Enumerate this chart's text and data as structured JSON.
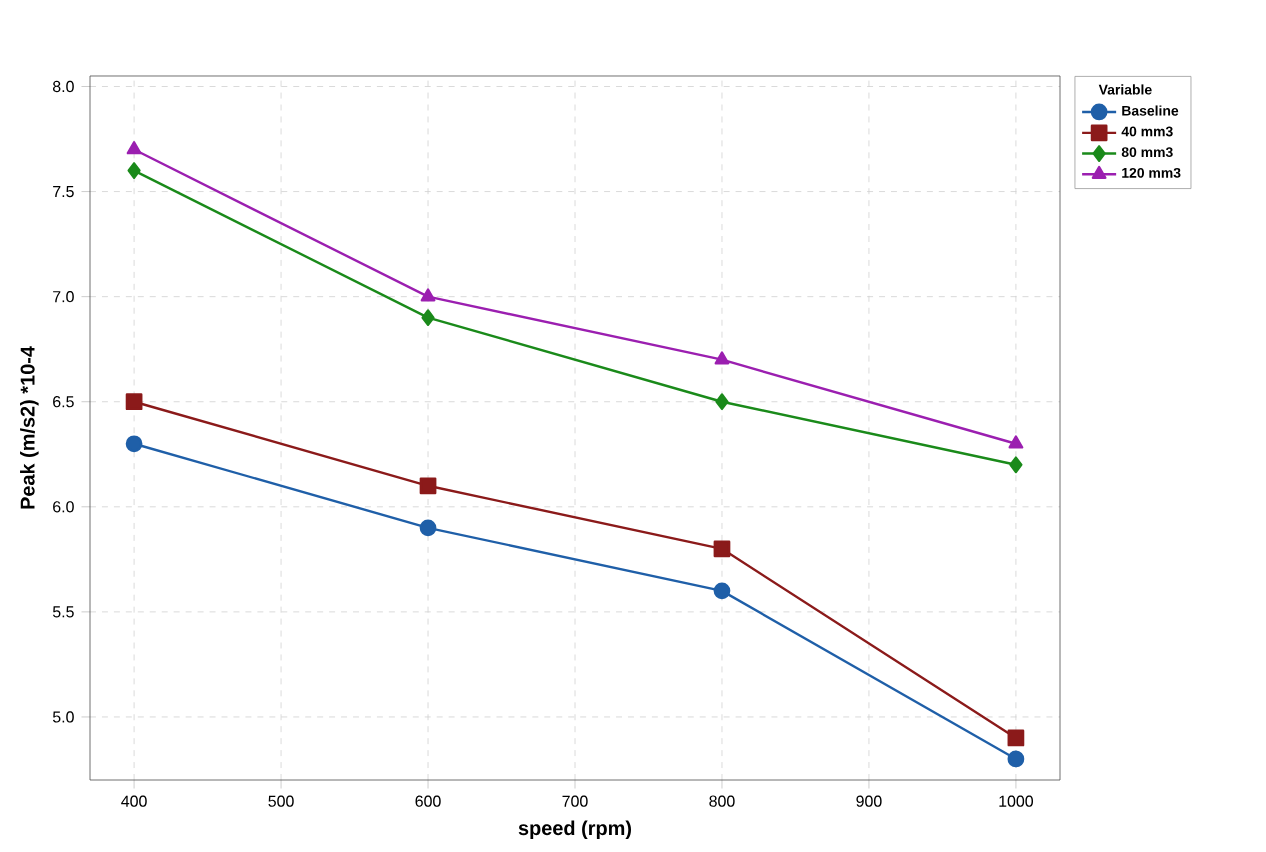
{
  "chart_data": {
    "type": "line",
    "xlabel": "speed (rpm)",
    "ylabel": "Peak (m/s2) *10-4",
    "legend_title": "Variable",
    "legend": "top right",
    "grid": true,
    "line_style": "solid",
    "x": [
      400,
      600,
      800,
      1000
    ],
    "xlim": [
      370,
      1030
    ],
    "xticks": [
      400,
      500,
      600,
      700,
      800,
      900,
      1000
    ],
    "ylim": [
      4.7,
      8.05
    ],
    "yticks": [
      {
        "value": 5,
        "label": "5.0"
      },
      5.5,
      {
        "value": 6,
        "label": "6.0"
      },
      6.5,
      {
        "value": 7,
        "label": "7.0"
      },
      7.5,
      {
        "value": 8,
        "label": "8.0"
      }
    ],
    "series": [
      {
        "name": "Baseline",
        "color": "#1f5fa8",
        "marker": "circle",
        "values": [
          6.3,
          5.9,
          5.6,
          4.8
        ]
      },
      {
        "name": "40 mm3",
        "color": "#8b1a1a",
        "marker": "square",
        "values": [
          6.5,
          6.1,
          5.8,
          4.9
        ]
      },
      {
        "name": "80 mm3",
        "color": "#1a8a1a",
        "marker": "diamond",
        "values": [
          7.6,
          6.9,
          6.5,
          6.2
        ]
      },
      {
        "name": "120 mm3",
        "color": "#9b1fb0",
        "marker": "triangle",
        "values": [
          7.7,
          7.0,
          6.7,
          6.3
        ]
      }
    ]
  }
}
